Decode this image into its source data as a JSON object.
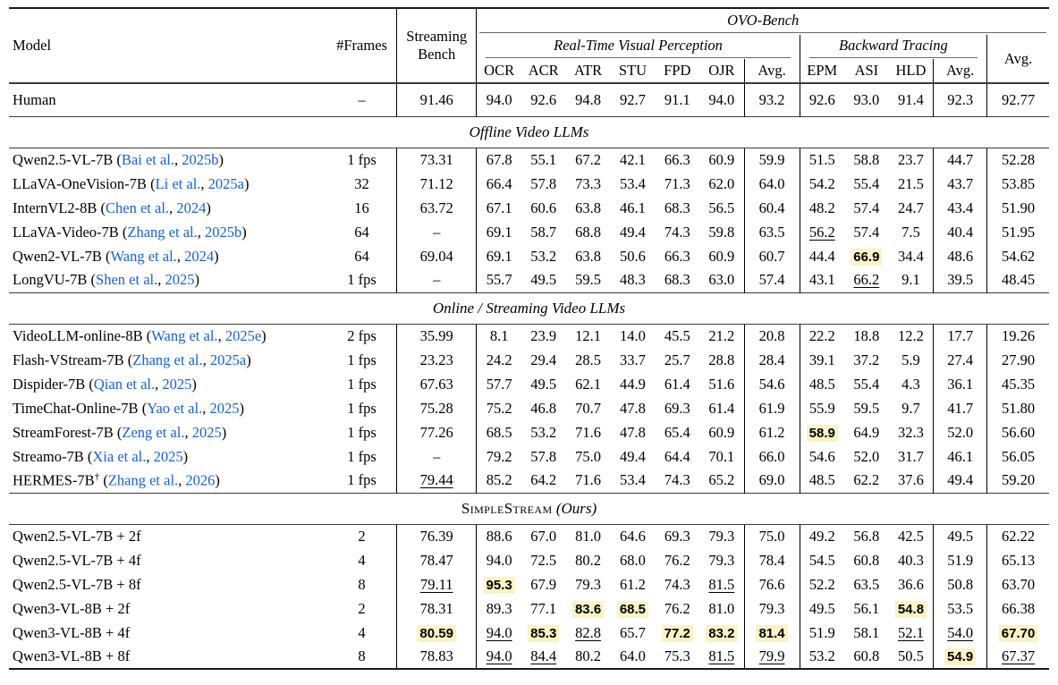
{
  "table": {
    "colors": {
      "cite_blue": "#1760dd",
      "highlight_yellow": "#fbf3c4"
    },
    "punct": {
      "open": "(",
      "sep": ", ",
      "close": ")"
    },
    "header": {
      "model": "Model",
      "frames": "#Frames",
      "streaming_l1": "Streaming",
      "streaming_l2": "Bench",
      "ovo": "OVO-Bench",
      "rtvp": "Real-Time Visual Perception",
      "bt": "Backward Tracing",
      "avg_total": "Avg.",
      "sub": [
        "OCR",
        "ACR",
        "ATR",
        "STU",
        "FPD",
        "OJR",
        "Avg.",
        "EPM",
        "ASI",
        "HLD",
        "Avg."
      ]
    },
    "sections": [
      {
        "name": "human",
        "rows": [
          {
            "model": "Human",
            "frames": "–",
            "values": [
              "91.46",
              "94.0",
              "92.6",
              "94.8",
              "92.7",
              "91.1",
              "94.0",
              "93.2",
              "92.6",
              "93.0",
              "91.4",
              "92.3",
              "92.77"
            ]
          }
        ]
      },
      {
        "name": "offline-video-llms",
        "title_parts": [
          {
            "t": "Offline Video LLMs",
            "it": true
          }
        ],
        "rows": [
          {
            "model": "Qwen2.5-VL-7B",
            "cite": {
              "name": "Bai et al.",
              "year": "2025b"
            },
            "frames": "1 fps",
            "values": [
              "73.31",
              "67.8",
              "55.1",
              "67.2",
              "42.1",
              "66.3",
              "60.9",
              "59.9",
              "51.5",
              "58.8",
              "23.7",
              "44.7",
              "52.28"
            ]
          },
          {
            "model": "LLaVA-OneVision-7B",
            "cite": {
              "name": "Li et al.",
              "year": "2025a"
            },
            "frames": "32",
            "values": [
              "71.12",
              "66.4",
              "57.8",
              "73.3",
              "53.4",
              "71.3",
              "62.0",
              "64.0",
              "54.2",
              "55.4",
              "21.5",
              "43.7",
              "53.85"
            ]
          },
          {
            "model": "InternVL2-8B",
            "cite": {
              "name": "Chen et al.",
              "year": "2024"
            },
            "frames": "16",
            "values": [
              "63.72",
              "67.1",
              "60.6",
              "63.8",
              "46.1",
              "68.3",
              "56.5",
              "60.4",
              "48.2",
              "57.4",
              "24.7",
              "43.4",
              "51.90"
            ]
          },
          {
            "model": "LLaVA-Video-7B",
            "cite": {
              "name": "Zhang et al.",
              "year": "2025b"
            },
            "frames": "64",
            "values": [
              "–",
              "69.1",
              "58.7",
              "68.8",
              "49.4",
              "74.3",
              "59.8",
              "63.5",
              "56.2",
              "57.4",
              "7.5",
              "40.4",
              "51.95"
            ],
            "marks": {
              "8": "u"
            }
          },
          {
            "model": "Qwen2-VL-7B",
            "cite": {
              "name": "Wang et al.",
              "year": "2024"
            },
            "frames": "64",
            "values": [
              "69.04",
              "69.1",
              "53.2",
              "63.8",
              "50.6",
              "66.3",
              "60.9",
              "60.7",
              "44.4",
              "66.9",
              "34.4",
              "48.6",
              "54.62"
            ],
            "marks": {
              "9": "b"
            }
          },
          {
            "model": "LongVU-7B",
            "cite": {
              "name": "Shen et al.",
              "year": "2025"
            },
            "frames": "1 fps",
            "values": [
              "–",
              "55.7",
              "49.5",
              "59.5",
              "48.3",
              "68.3",
              "63.0",
              "57.4",
              "43.1",
              "66.2",
              "9.1",
              "39.5",
              "48.45"
            ],
            "marks": {
              "9": "u"
            }
          }
        ]
      },
      {
        "name": "online-streaming-video-llms",
        "title_parts": [
          {
            "t": "Online / Streaming Video LLMs",
            "it": true
          }
        ],
        "rows": [
          {
            "model": "VideoLLM-online-8B",
            "cite": {
              "name": "Wang et al.",
              "year": "2025e"
            },
            "frames": "2 fps",
            "values": [
              "35.99",
              "8.1",
              "23.9",
              "12.1",
              "14.0",
              "45.5",
              "21.2",
              "20.8",
              "22.2",
              "18.8",
              "12.2",
              "17.7",
              "19.26"
            ]
          },
          {
            "model": "Flash-VStream-7B",
            "cite": {
              "name": "Zhang et al.",
              "year": "2025a"
            },
            "frames": "1 fps",
            "values": [
              "23.23",
              "24.2",
              "29.4",
              "28.5",
              "33.7",
              "25.7",
              "28.8",
              "28.4",
              "39.1",
              "37.2",
              "5.9",
              "27.4",
              "27.90"
            ]
          },
          {
            "model": "Dispider-7B",
            "cite": {
              "name": "Qian et al.",
              "year": "2025"
            },
            "frames": "1 fps",
            "values": [
              "67.63",
              "57.7",
              "49.5",
              "62.1",
              "44.9",
              "61.4",
              "51.6",
              "54.6",
              "48.5",
              "55.4",
              "4.3",
              "36.1",
              "45.35"
            ]
          },
          {
            "model": "TimeChat-Online-7B",
            "cite": {
              "name": "Yao et al.",
              "year": "2025"
            },
            "frames": "1 fps",
            "values": [
              "75.28",
              "75.2",
              "46.8",
              "70.7",
              "47.8",
              "69.3",
              "61.4",
              "61.9",
              "55.9",
              "59.5",
              "9.7",
              "41.7",
              "51.80"
            ]
          },
          {
            "model": "StreamForest-7B",
            "cite": {
              "name": "Zeng et al.",
              "year": "2025"
            },
            "frames": "1 fps",
            "values": [
              "77.26",
              "68.5",
              "53.2",
              "71.6",
              "47.8",
              "65.4",
              "60.9",
              "61.2",
              "58.9",
              "64.9",
              "32.3",
              "52.0",
              "56.60"
            ],
            "marks": {
              "8": "b"
            }
          },
          {
            "model": "Streamo-7B",
            "cite": {
              "name": "Xia et al.",
              "year": "2025"
            },
            "frames": "1 fps",
            "values": [
              "–",
              "79.2",
              "57.8",
              "75.0",
              "49.4",
              "64.4",
              "70.1",
              "66.0",
              "54.6",
              "52.0",
              "31.7",
              "46.1",
              "56.05"
            ]
          },
          {
            "model": "HERMES-7B",
            "sup": "†",
            "cite": {
              "name": "Zhang et al.",
              "year": "2026"
            },
            "frames": "1 fps",
            "values": [
              "79.44",
              "85.2",
              "64.2",
              "71.6",
              "53.4",
              "74.3",
              "65.2",
              "69.0",
              "48.5",
              "62.2",
              "37.6",
              "49.4",
              "59.20"
            ],
            "marks": {
              "0": "u"
            }
          }
        ]
      },
      {
        "name": "simplestream-ours",
        "title_parts": [
          {
            "t": "SimpleStream",
            "sc": true
          },
          {
            "t": " (Ours)",
            "it": true
          }
        ],
        "rows": [
          {
            "model": "Qwen2.5-VL-7B + 2f",
            "frames": "2",
            "values": [
              "76.39",
              "88.6",
              "67.0",
              "81.0",
              "64.6",
              "69.3",
              "79.3",
              "75.0",
              "49.2",
              "56.8",
              "42.5",
              "49.5",
              "62.22"
            ]
          },
          {
            "model": "Qwen2.5-VL-7B + 4f",
            "frames": "4",
            "values": [
              "78.47",
              "94.0",
              "72.5",
              "80.2",
              "68.0",
              "76.2",
              "79.3",
              "78.4",
              "54.5",
              "60.8",
              "40.3",
              "51.9",
              "65.13"
            ]
          },
          {
            "model": "Qwen2.5-VL-7B + 8f",
            "frames": "8",
            "values": [
              "79.11",
              "95.3",
              "67.9",
              "79.3",
              "61.2",
              "74.3",
              "81.5",
              "76.6",
              "52.2",
              "63.5",
              "36.6",
              "50.8",
              "63.70"
            ],
            "marks": {
              "0": "u",
              "1": "b",
              "6": "u"
            }
          },
          {
            "model": "Qwen3-VL-8B + 2f",
            "frames": "2",
            "values": [
              "78.31",
              "89.3",
              "77.1",
              "83.6",
              "68.5",
              "76.2",
              "81.0",
              "79.3",
              "49.5",
              "56.1",
              "54.8",
              "53.5",
              "66.38"
            ],
            "marks": {
              "3": "b",
              "4": "b",
              "10": "b"
            }
          },
          {
            "model": "Qwen3-VL-8B + 4f",
            "frames": "4",
            "values": [
              "80.59",
              "94.0",
              "85.3",
              "82.8",
              "65.7",
              "77.2",
              "83.2",
              "81.4",
              "51.9",
              "58.1",
              "52.1",
              "54.0",
              "67.70"
            ],
            "marks": {
              "0": "b",
              "1": "u",
              "2": "b",
              "3": "u",
              "5": "b",
              "6": "b",
              "7": "b",
              "10": "u",
              "11": "u",
              "12": "b"
            }
          },
          {
            "model": "Qwen3-VL-8B + 8f",
            "frames": "8",
            "values": [
              "78.83",
              "94.0",
              "84.4",
              "80.2",
              "64.0",
              "75.3",
              "81.5",
              "79.9",
              "53.2",
              "60.8",
              "50.5",
              "54.9",
              "67.37"
            ],
            "marks": {
              "1": "u",
              "2": "u",
              "6": "u",
              "7": "u",
              "11": "b",
              "12": "u"
            }
          }
        ]
      }
    ]
  }
}
